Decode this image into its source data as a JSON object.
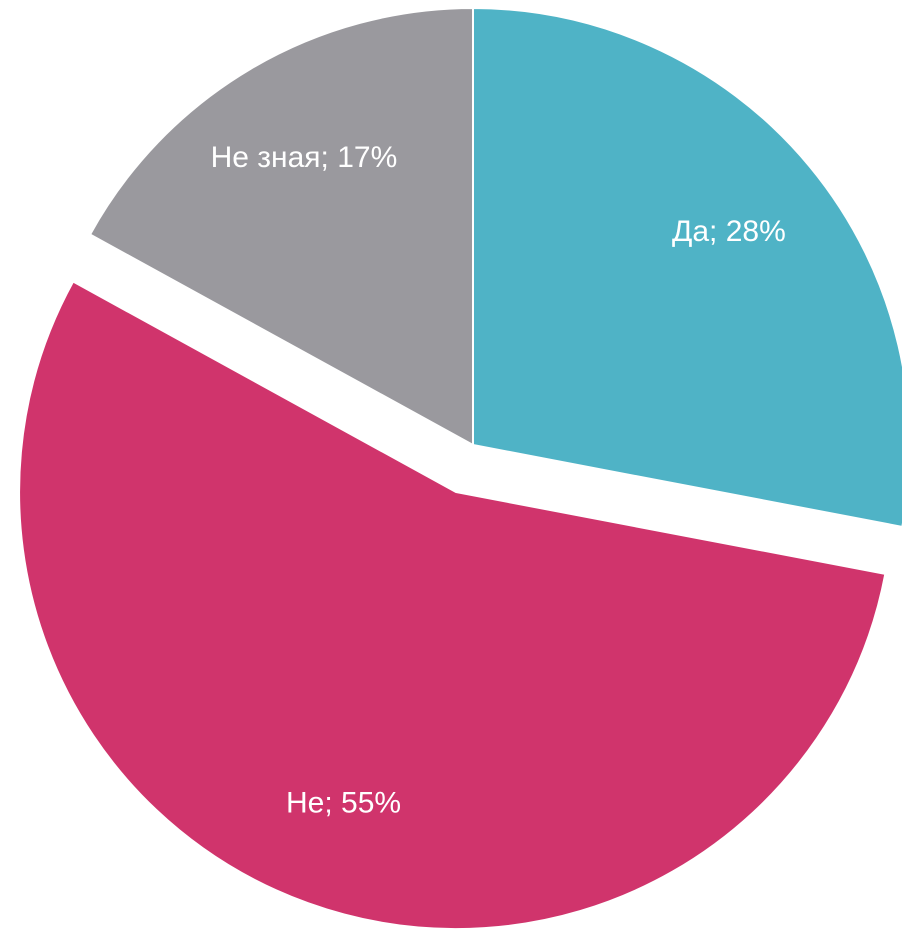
{
  "chart_data": {
    "type": "pie",
    "categories": [
      "Да",
      "Не",
      "Не зная"
    ],
    "values": [
      28,
      55,
      17
    ],
    "value_labels": [
      "Да; 28%",
      "Не; 55%",
      "Не зная; 17%"
    ],
    "colors": [
      "#4fb3c6",
      "#d0346c",
      "#9a999e"
    ]
  }
}
